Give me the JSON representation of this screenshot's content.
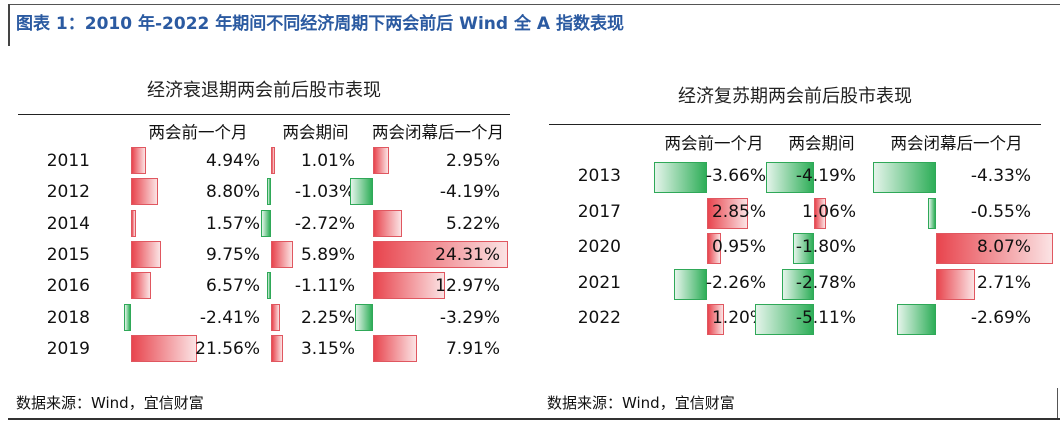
{
  "figure_title": "图表 1：2010 年-2022 年期间不同经济周期下两会前后 Wind 全 A 指数表现",
  "sources": [
    "数据来源：Wind，宜信财富",
    "数据来源：Wind，宜信财富"
  ],
  "colors": {
    "positive": "#e8454e",
    "negative": "#2eae58",
    "title": "#2b5aa1"
  },
  "chart_data": [
    {
      "type": "table",
      "title": "经济衰退期两会前后股市表现",
      "columns": [
        "两会前一个月",
        "两会期间",
        "两会闭幕后一个月"
      ],
      "rows": [
        {
          "year": "2011",
          "values": [
            4.94,
            1.01,
            2.95
          ],
          "labels": [
            "4.94%",
            "1.01%",
            "2.95%"
          ]
        },
        {
          "year": "2012",
          "values": [
            8.8,
            -1.03,
            -4.19
          ],
          "labels": [
            "8.80%",
            "-1.03%",
            "-4.19%"
          ]
        },
        {
          "year": "2014",
          "values": [
            1.57,
            -2.72,
            5.22
          ],
          "labels": [
            "1.57%",
            "-2.72%",
            "5.22%"
          ]
        },
        {
          "year": "2015",
          "values": [
            9.75,
            5.89,
            24.31
          ],
          "labels": [
            "9.75%",
            "5.89%",
            "24.31%"
          ]
        },
        {
          "year": "2016",
          "values": [
            6.57,
            -1.11,
            12.97
          ],
          "labels": [
            "6.57%",
            "-1.11%",
            "12.97%"
          ]
        },
        {
          "year": "2018",
          "values": [
            -2.41,
            2.25,
            -3.29
          ],
          "labels": [
            "-2.41%",
            "2.25%",
            "-3.29%"
          ]
        },
        {
          "year": "2019",
          "values": [
            21.56,
            3.15,
            7.91
          ],
          "labels": [
            "21.56%",
            "3.15%",
            "7.91%"
          ]
        }
      ]
    },
    {
      "type": "table",
      "title": "经济复苏期两会前后股市表现",
      "columns": [
        "两会前一个月",
        "两会期间",
        "两会闭幕后一个月"
      ],
      "rows": [
        {
          "year": "2013",
          "values": [
            -3.66,
            -4.19,
            -4.33
          ],
          "labels": [
            "-3.66%",
            "-4.19%",
            "-4.33%"
          ]
        },
        {
          "year": "2017",
          "values": [
            2.85,
            1.06,
            -0.55
          ],
          "labels": [
            "2.85%",
            "1.06%",
            "-0.55%"
          ]
        },
        {
          "year": "2020",
          "values": [
            0.95,
            -1.8,
            8.07
          ],
          "labels": [
            "0.95%",
            "-1.80%",
            "8.07%"
          ]
        },
        {
          "year": "2021",
          "values": [
            -2.26,
            -2.78,
            2.71
          ],
          "labels": [
            "-2.26%",
            "-2.78%",
            "2.71%"
          ]
        },
        {
          "year": "2022",
          "values": [
            1.2,
            -5.11,
            -2.69
          ],
          "labels": [
            "1.20%",
            "-5.11%",
            "-2.69%"
          ]
        }
      ]
    }
  ]
}
